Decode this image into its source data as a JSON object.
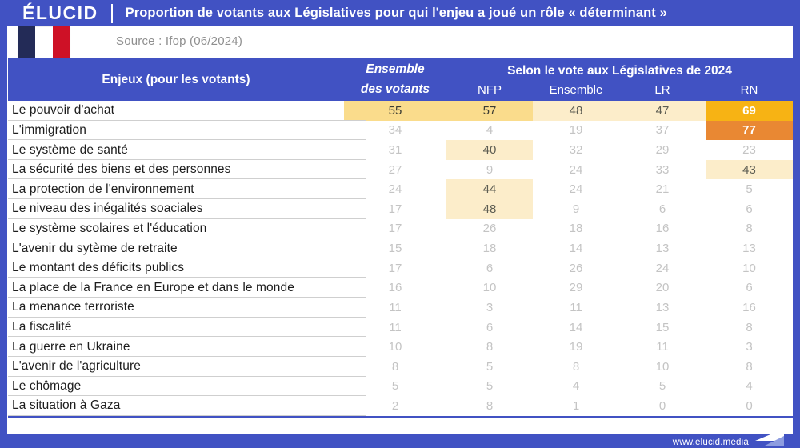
{
  "header": {
    "logo": "ÉLUCID",
    "title": "Proportion de votants aux Législatives pour qui l'enjeu a joué un rôle « déterminant »",
    "source": "Source : Ifop (06/2024)"
  },
  "footer": {
    "url": "www.elucid.media"
  },
  "colors": {
    "accent_blue": "#4152c3",
    "highlight_medium": "#fadc8c",
    "highlight_light": "#fcedca",
    "highlight_amber": "#f7b314",
    "highlight_orange": "#e98833",
    "flag_navy": "#232b57",
    "flag_red": "#ce1126"
  },
  "table": {
    "col_issue": "Enjeux (pour les votants)",
    "col_ensemble_line1": "Ensemble",
    "col_ensemble_line2": "des votants",
    "group_header": "Selon le vote aux Législatives de 2024",
    "parties": [
      "NFP",
      "Ensemble",
      "LR",
      "RN"
    ],
    "rows": [
      {
        "label": "Le pouvoir d'achat",
        "cells": [
          {
            "v": 55,
            "style": "mid"
          },
          {
            "v": 57,
            "style": "mid"
          },
          {
            "v": 48,
            "style": "light"
          },
          {
            "v": 47,
            "style": "light"
          },
          {
            "v": 69,
            "style": "amber"
          }
        ]
      },
      {
        "label": "L'immigration",
        "cells": [
          {
            "v": 34,
            "style": "plain"
          },
          {
            "v": 4,
            "style": "plain"
          },
          {
            "v": 19,
            "style": "plain"
          },
          {
            "v": 37,
            "style": "plain"
          },
          {
            "v": 77,
            "style": "orange"
          }
        ]
      },
      {
        "label": "Le système de santé",
        "cells": [
          {
            "v": 31,
            "style": "plain"
          },
          {
            "v": 40,
            "style": "light"
          },
          {
            "v": 32,
            "style": "plain"
          },
          {
            "v": 29,
            "style": "plain"
          },
          {
            "v": 23,
            "style": "plain"
          }
        ]
      },
      {
        "label": "La sécurité des biens et des personnes",
        "cells": [
          {
            "v": 27,
            "style": "plain"
          },
          {
            "v": 9,
            "style": "plain"
          },
          {
            "v": 24,
            "style": "plain"
          },
          {
            "v": 33,
            "style": "plain"
          },
          {
            "v": 43,
            "style": "light"
          }
        ]
      },
      {
        "label": "La protection de l'environnement",
        "cells": [
          {
            "v": 24,
            "style": "plain"
          },
          {
            "v": 44,
            "style": "light"
          },
          {
            "v": 24,
            "style": "plain"
          },
          {
            "v": 21,
            "style": "plain"
          },
          {
            "v": 5,
            "style": "plain"
          }
        ]
      },
      {
        "label": "Le niveau des inégalités soaciales",
        "cells": [
          {
            "v": 17,
            "style": "plain"
          },
          {
            "v": 48,
            "style": "light"
          },
          {
            "v": 9,
            "style": "plain"
          },
          {
            "v": 6,
            "style": "plain"
          },
          {
            "v": 6,
            "style": "plain"
          }
        ]
      },
      {
        "label": "Le système scolaires et l'éducation",
        "cells": [
          {
            "v": 17,
            "style": "plain"
          },
          {
            "v": 26,
            "style": "plain"
          },
          {
            "v": 18,
            "style": "plain"
          },
          {
            "v": 16,
            "style": "plain"
          },
          {
            "v": 8,
            "style": "plain"
          }
        ]
      },
      {
        "label": "L'avenir du sytème de retraite",
        "cells": [
          {
            "v": 15,
            "style": "plain"
          },
          {
            "v": 18,
            "style": "plain"
          },
          {
            "v": 14,
            "style": "plain"
          },
          {
            "v": 13,
            "style": "plain"
          },
          {
            "v": 13,
            "style": "plain"
          }
        ]
      },
      {
        "label": "Le montant des déficits publics",
        "cells": [
          {
            "v": 17,
            "style": "plain"
          },
          {
            "v": 6,
            "style": "plain"
          },
          {
            "v": 26,
            "style": "plain"
          },
          {
            "v": 24,
            "style": "plain"
          },
          {
            "v": 10,
            "style": "plain"
          }
        ]
      },
      {
        "label": "La place de la France en Europe et dans le monde",
        "cells": [
          {
            "v": 16,
            "style": "plain"
          },
          {
            "v": 10,
            "style": "plain"
          },
          {
            "v": 29,
            "style": "plain"
          },
          {
            "v": 20,
            "style": "plain"
          },
          {
            "v": 6,
            "style": "plain"
          }
        ]
      },
      {
        "label": "La menance terroriste",
        "cells": [
          {
            "v": 11,
            "style": "plain"
          },
          {
            "v": 3,
            "style": "plain"
          },
          {
            "v": 11,
            "style": "plain"
          },
          {
            "v": 13,
            "style": "plain"
          },
          {
            "v": 16,
            "style": "plain"
          }
        ]
      },
      {
        "label": "La fiscalité",
        "cells": [
          {
            "v": 11,
            "style": "plain"
          },
          {
            "v": 6,
            "style": "plain"
          },
          {
            "v": 14,
            "style": "plain"
          },
          {
            "v": 15,
            "style": "plain"
          },
          {
            "v": 8,
            "style": "plain"
          }
        ]
      },
      {
        "label": "La guerre en Ukraine",
        "cells": [
          {
            "v": 10,
            "style": "plain"
          },
          {
            "v": 8,
            "style": "plain"
          },
          {
            "v": 19,
            "style": "plain"
          },
          {
            "v": 11,
            "style": "plain"
          },
          {
            "v": 3,
            "style": "plain"
          }
        ]
      },
      {
        "label": "L'avenir de l'agriculture",
        "cells": [
          {
            "v": 8,
            "style": "plain"
          },
          {
            "v": 5,
            "style": "plain"
          },
          {
            "v": 8,
            "style": "plain"
          },
          {
            "v": 10,
            "style": "plain"
          },
          {
            "v": 8,
            "style": "plain"
          }
        ]
      },
      {
        "label": "Le chômage",
        "cells": [
          {
            "v": 5,
            "style": "plain"
          },
          {
            "v": 5,
            "style": "plain"
          },
          {
            "v": 4,
            "style": "plain"
          },
          {
            "v": 5,
            "style": "plain"
          },
          {
            "v": 4,
            "style": "plain"
          }
        ]
      },
      {
        "label": "La situation à Gaza",
        "cells": [
          {
            "v": 2,
            "style": "plain"
          },
          {
            "v": 8,
            "style": "plain"
          },
          {
            "v": 1,
            "style": "plain"
          },
          {
            "v": 0,
            "style": "plain"
          },
          {
            "v": 0,
            "style": "plain"
          }
        ]
      }
    ]
  },
  "chart_data": {
    "type": "table",
    "title": "Proportion de votants aux Législatives pour qui l'enjeu a joué un rôle « déterminant »",
    "source": "Source : Ifop (06/2024)",
    "group_header": "Selon le vote aux Législatives de 2024",
    "columns": [
      "Enjeux (pour les votants)",
      "Ensemble des votants",
      "NFP",
      "Ensemble",
      "LR",
      "RN"
    ],
    "rows": [
      [
        "Le pouvoir d'achat",
        55,
        57,
        48,
        47,
        69
      ],
      [
        "L'immigration",
        34,
        4,
        19,
        37,
        77
      ],
      [
        "Le système de santé",
        31,
        40,
        32,
        29,
        23
      ],
      [
        "La sécurité des biens et des personnes",
        27,
        9,
        24,
        33,
        43
      ],
      [
        "La protection de l'environnement",
        24,
        44,
        24,
        21,
        5
      ],
      [
        "Le niveau des inégalités soaciales",
        17,
        48,
        9,
        6,
        6
      ],
      [
        "Le système scolaires et l'éducation",
        17,
        26,
        18,
        16,
        8
      ],
      [
        "L'avenir du sytème de retraite",
        15,
        18,
        14,
        13,
        13
      ],
      [
        "Le montant des déficits publics",
        17,
        6,
        26,
        24,
        10
      ],
      [
        "La place de la France en Europe et dans le monde",
        16,
        10,
        29,
        20,
        6
      ],
      [
        "La menance terroriste",
        11,
        3,
        11,
        13,
        16
      ],
      [
        "La fiscalité",
        11,
        6,
        14,
        15,
        8
      ],
      [
        "La guerre en Ukraine",
        10,
        8,
        19,
        11,
        3
      ],
      [
        "L'avenir de l'agriculture",
        8,
        5,
        8,
        10,
        8
      ],
      [
        "Le chômage",
        5,
        5,
        4,
        5,
        4
      ],
      [
        "La situation à Gaza",
        2,
        8,
        1,
        0,
        0
      ]
    ]
  }
}
